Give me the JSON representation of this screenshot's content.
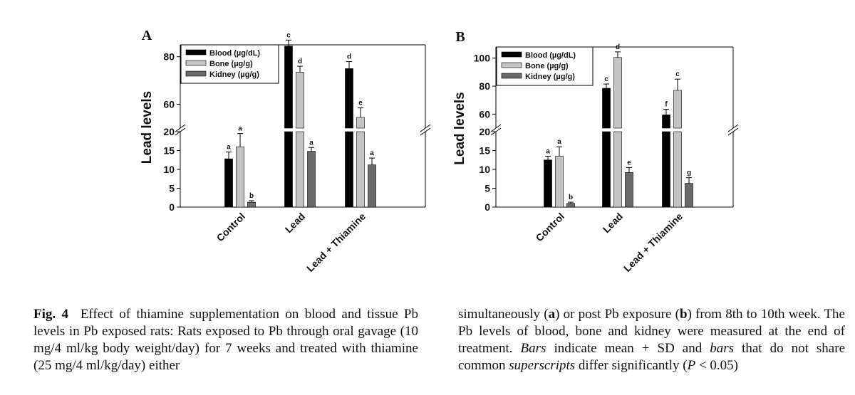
{
  "chart_data": [
    {
      "type": "bar",
      "panel_label": "A",
      "ylabel": "Lead levels",
      "categories": [
        "Control",
        "Lead",
        "Lead + Thiamine"
      ],
      "axis_break": {
        "lower_range": [
          0,
          20
        ],
        "upper_range": [
          50,
          85
        ]
      },
      "lower_ticks": [
        0,
        5,
        10,
        15,
        20
      ],
      "upper_ticks": [
        60,
        80
      ],
      "legend_position": "top-left",
      "series": [
        {
          "name": "Blood (µg/dL)",
          "color": "#000000",
          "values": [
            12.8,
            84.5,
            75
          ],
          "sd": [
            1.8,
            2.5,
            3
          ],
          "labels": [
            "a",
            "c",
            "d"
          ]
        },
        {
          "name": "Bone (µg/g)",
          "color": "#c4c4c4",
          "values": [
            16,
            73.5,
            54.5
          ],
          "sd": [
            3.5,
            2.5,
            4
          ],
          "labels": [
            "a",
            "d",
            "e"
          ]
        },
        {
          "name": "Kidney (µg/g)",
          "color": "#6a6a6a",
          "values": [
            1.3,
            14.8,
            11.2
          ],
          "sd": [
            0.4,
            1,
            1.8
          ],
          "labels": [
            "b",
            "a",
            "a"
          ]
        }
      ]
    },
    {
      "type": "bar",
      "panel_label": "B",
      "ylabel": "Lead levels",
      "categories": [
        "Control",
        "Lead",
        "Lead + Thiamine"
      ],
      "axis_break": {
        "lower_range": [
          0,
          20
        ],
        "upper_range": [
          50,
          108
        ]
      },
      "lower_ticks": [
        0,
        5,
        10,
        15,
        20
      ],
      "upper_ticks": [
        60,
        80,
        100
      ],
      "legend_position": "top-left",
      "series": [
        {
          "name": "Blood (µg/dL)",
          "color": "#000000",
          "values": [
            12.5,
            78.5,
            59.5
          ],
          "sd": [
            1,
            3,
            4
          ],
          "labels": [
            "a",
            "c",
            "f"
          ]
        },
        {
          "name": "Bone (µg/g)",
          "color": "#c4c4c4",
          "values": [
            13.5,
            100.5,
            77
          ],
          "sd": [
            2.5,
            4,
            8
          ],
          "labels": [
            "a",
            "d",
            "c"
          ]
        },
        {
          "name": "Kidney (µg/g)",
          "color": "#6a6a6a",
          "values": [
            1,
            9.2,
            6.3
          ],
          "sd": [
            0.3,
            1.3,
            1.5
          ],
          "labels": [
            "b",
            "e",
            "g"
          ]
        }
      ]
    }
  ],
  "caption": {
    "fig_label": "Fig. 4",
    "left_text": "Effect of thiamine supplementation on blood and tissue Pb levels in Pb exposed rats: Rats exposed to Pb through oral gavage (10 mg/4 ml/kg body weight/day) for 7 weeks and treated with thiamine (25 mg/4 ml/kg/day) either",
    "right_text_1": "simultaneously (",
    "right_a": "a",
    "right_text_2": ") or post Pb exposure (",
    "right_b": "b",
    "right_text_3": ") from 8th to 10th week. The Pb levels of blood, bone and kidney were measured at the end of treatment. ",
    "right_bars1": "Bars",
    "right_text_4": " indicate mean + SD and ",
    "right_bars2": "bars",
    "right_text_5": " that do not share common ",
    "right_sup": "superscripts",
    "right_text_6": " differ significantly (",
    "right_p": "P",
    "right_text_7": " < 0.05)"
  }
}
